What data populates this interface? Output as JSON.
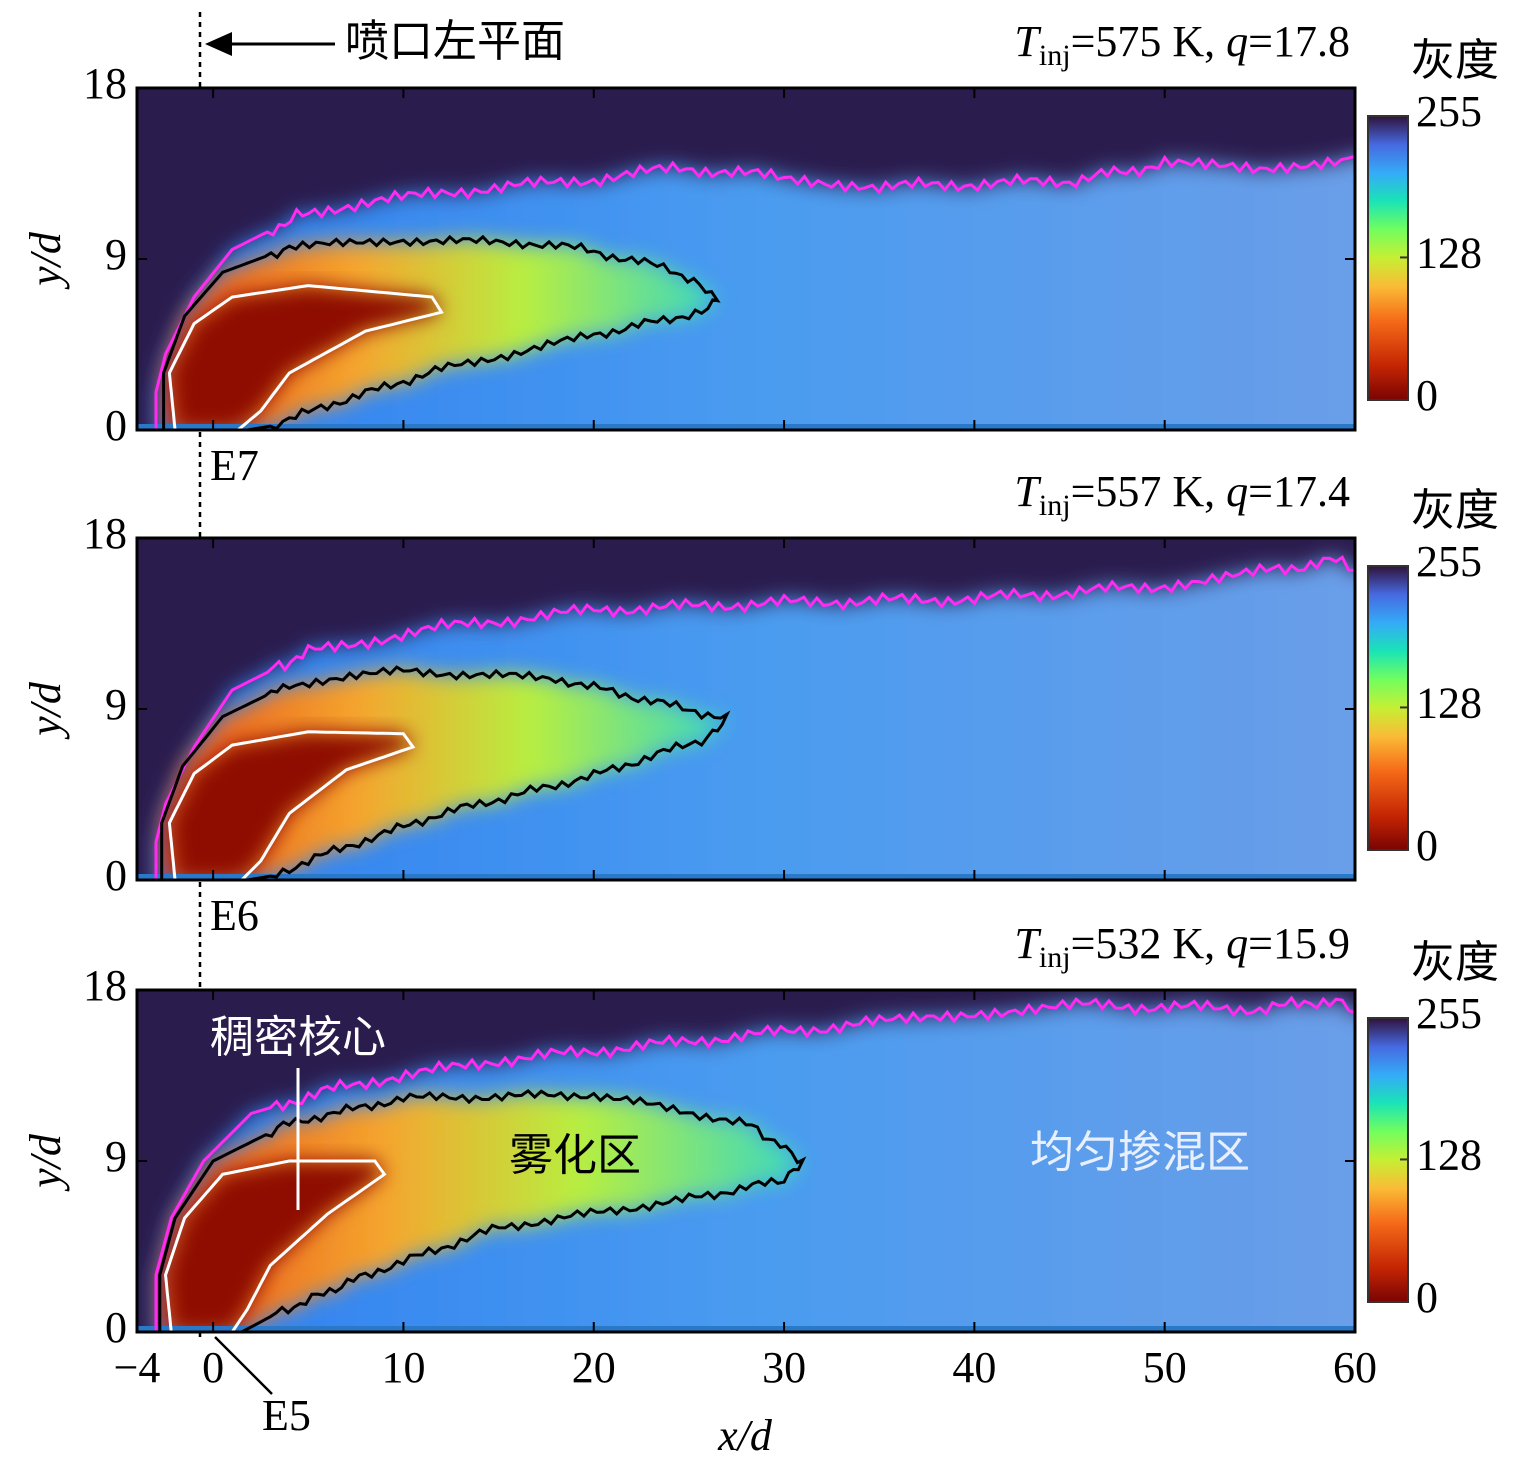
{
  "chart_data": {
    "type": "heatmap",
    "xlabel": "x/d",
    "ylabel": "y/d",
    "xlim": [
      -4,
      60
    ],
    "xticks": [
      {
        "value": -4,
        "label": "−4"
      },
      0,
      10,
      20,
      30,
      40,
      50,
      60
    ],
    "ylim": [
      0,
      18
    ],
    "yticks": [
      0,
      9,
      18
    ],
    "colorbar": {
      "label": "灰度",
      "clim": [
        0,
        255
      ],
      "ticks": [
        0,
        128,
        255
      ]
    },
    "panels": [
      {
        "title": [
          "T",
          "inj",
          "=575 K, ",
          "q",
          "=17.8"
        ],
        "point_label": "E7"
      },
      {
        "title": [
          "T",
          "inj",
          "=557 K, ",
          "q",
          "=17.4"
        ],
        "point_label": "E6"
      },
      {
        "title": [
          "T",
          "inj",
          "=532 K, ",
          "q",
          "=15.9"
        ],
        "point_label": "E5"
      }
    ]
  },
  "annotations": {
    "nozzle_plane": "喷口左平面",
    "dense_core": "稠密核心",
    "atomization_zone": "雾化区",
    "mixing_zone": "均匀掺混区"
  }
}
